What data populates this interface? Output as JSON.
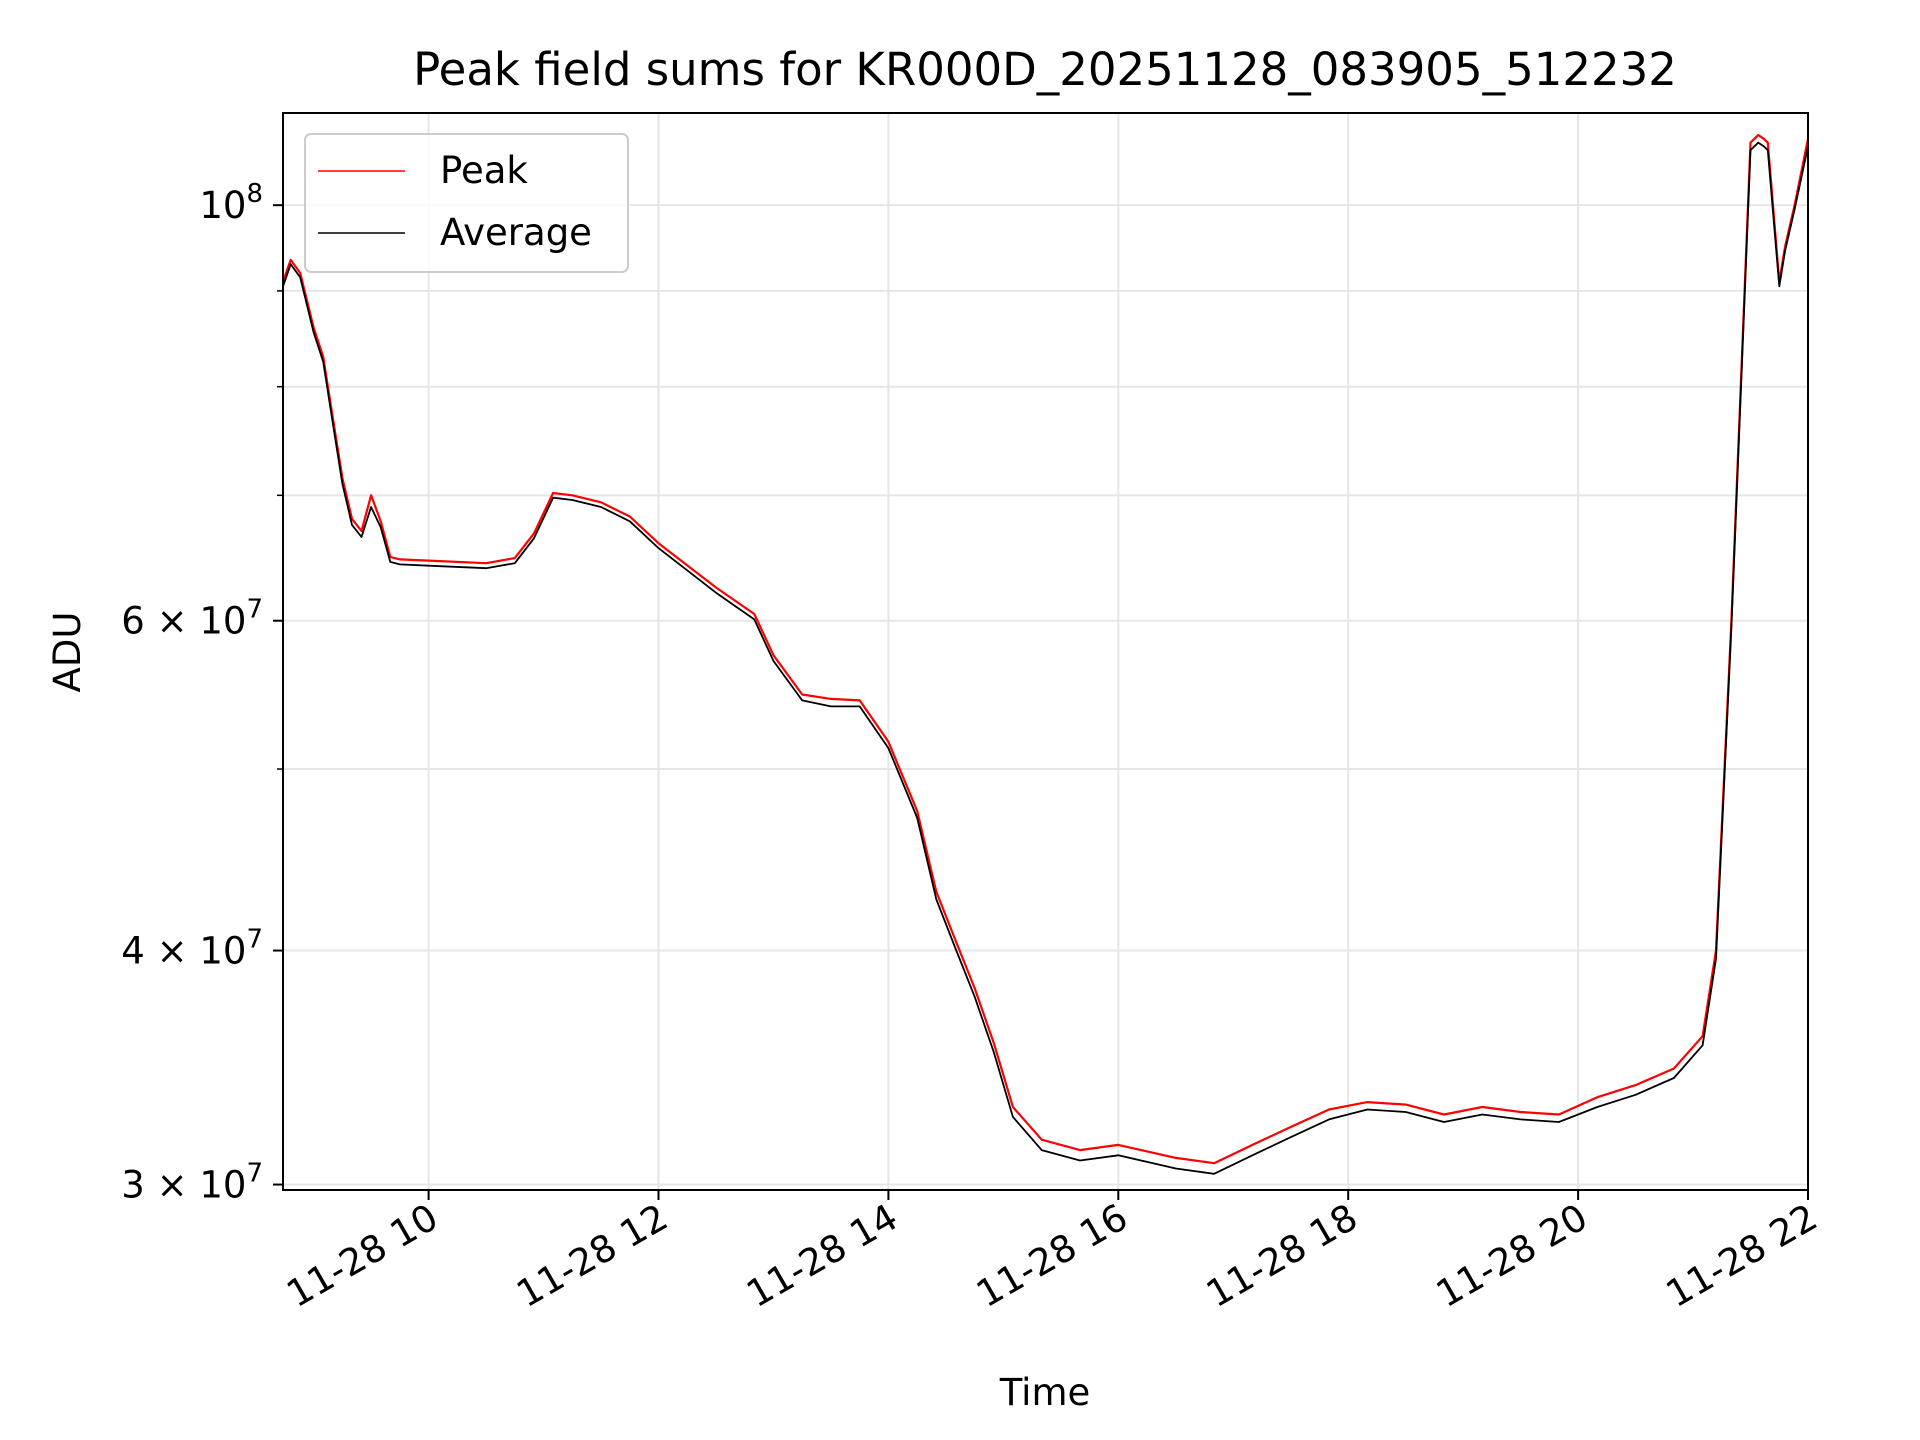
{
  "chart_data": {
    "type": "line",
    "title": "Peak field sums for KR000D_20251128_083905_512232",
    "xlabel": "Time",
    "ylabel": "ADU",
    "yscale": "log",
    "xlim": [
      "2025-11-28 08:44",
      "2025-11-28 22:00"
    ],
    "ylim": [
      29800000,
      112000000
    ],
    "grid": true,
    "legend_position": "upper-left",
    "x_ticks": [
      "2025-11-28 10:00",
      "2025-11-28 12:00",
      "2025-11-28 14:00",
      "2025-11-28 16:00",
      "2025-11-28 18:00",
      "2025-11-28 20:00",
      "2025-11-28 22:00"
    ],
    "x_tick_labels": [
      "11-28 10",
      "11-28 12",
      "11-28 14",
      "11-28 16",
      "11-28 18",
      "11-28 20",
      "11-28 22"
    ],
    "y_major_ticks": [
      {
        "value": 30000000,
        "mantissa": "3",
        "exponent": "7"
      },
      {
        "value": 40000000,
        "mantissa": "4",
        "exponent": "7"
      },
      {
        "value": 60000000,
        "mantissa": "6",
        "exponent": "7"
      },
      {
        "value": 100000000,
        "mantissa": "",
        "exponent": "8"
      }
    ],
    "y_minor_ticks": [
      50000000,
      70000000,
      80000000,
      90000000
    ],
    "colors": {
      "Peak": "#ff0000",
      "Average": "#000000"
    },
    "series": [
      {
        "name": "Peak",
        "x": [
          "2025-11-28 08:44",
          "2025-11-28 08:48",
          "2025-11-28 08:53",
          "2025-11-28 09:00",
          "2025-11-28 09:05",
          "2025-11-28 09:10",
          "2025-11-28 09:15",
          "2025-11-28 09:20",
          "2025-11-28 09:25",
          "2025-11-28 09:30",
          "2025-11-28 09:35",
          "2025-11-28 09:40",
          "2025-11-28 09:45",
          "2025-11-28 10:00",
          "2025-11-28 10:30",
          "2025-11-28 10:45",
          "2025-11-28 10:55",
          "2025-11-28 11:05",
          "2025-11-28 11:15",
          "2025-11-28 11:30",
          "2025-11-28 11:45",
          "2025-11-28 12:00",
          "2025-11-28 12:30",
          "2025-11-28 12:50",
          "2025-11-28 13:00",
          "2025-11-28 13:15",
          "2025-11-28 13:30",
          "2025-11-28 13:45",
          "2025-11-28 14:00",
          "2025-11-28 14:15",
          "2025-11-28 14:25",
          "2025-11-28 14:35",
          "2025-11-28 14:45",
          "2025-11-28 14:55",
          "2025-11-28 15:05",
          "2025-11-28 15:20",
          "2025-11-28 15:40",
          "2025-11-28 16:00",
          "2025-11-28 16:30",
          "2025-11-28 16:50",
          "2025-11-28 17:10",
          "2025-11-28 17:30",
          "2025-11-28 17:50",
          "2025-11-28 18:10",
          "2025-11-28 18:30",
          "2025-11-28 18:50",
          "2025-11-28 19:10",
          "2025-11-28 19:30",
          "2025-11-28 19:50",
          "2025-11-28 20:10",
          "2025-11-28 20:30",
          "2025-11-28 20:50",
          "2025-11-28 21:05",
          "2025-11-28 21:12",
          "2025-11-28 21:20",
          "2025-11-28 21:30",
          "2025-11-28 21:34",
          "2025-11-28 21:37",
          "2025-11-28 21:39",
          "2025-11-28 21:45",
          "2025-11-28 21:48",
          "2025-11-28 21:53",
          "2025-11-28 22:00"
        ],
        "values": [
          91000000,
          93500000,
          92000000,
          86000000,
          83000000,
          77000000,
          71500000,
          68000000,
          67000000,
          70000000,
          67800000,
          64900000,
          64700000,
          64600000,
          64400000,
          64800000,
          66800000,
          70200000,
          70000000,
          69400000,
          68200000,
          66000000,
          62500000,
          60500000,
          57500000,
          54800000,
          54500000,
          54400000,
          51700000,
          47500000,
          43000000,
          40500000,
          38200000,
          35700000,
          33000000,
          31700000,
          31300000,
          31500000,
          31000000,
          30800000,
          31500000,
          32200000,
          32900000,
          33200000,
          33100000,
          32700000,
          33000000,
          32800000,
          32700000,
          33400000,
          33900000,
          34600000,
          36000000,
          40000000,
          60000000,
          108000000,
          109000000,
          108500000,
          108000000,
          91000000,
          95000000,
          100000000,
          108500000
        ]
      },
      {
        "name": "Average",
        "x": [
          "2025-11-28 08:44",
          "2025-11-28 08:48",
          "2025-11-28 08:53",
          "2025-11-28 09:00",
          "2025-11-28 09:05",
          "2025-11-28 09:10",
          "2025-11-28 09:15",
          "2025-11-28 09:20",
          "2025-11-28 09:25",
          "2025-11-28 09:30",
          "2025-11-28 09:35",
          "2025-11-28 09:40",
          "2025-11-28 09:45",
          "2025-11-28 10:00",
          "2025-11-28 10:30",
          "2025-11-28 10:45",
          "2025-11-28 10:55",
          "2025-11-28 11:05",
          "2025-11-28 11:15",
          "2025-11-28 11:30",
          "2025-11-28 11:45",
          "2025-11-28 12:00",
          "2025-11-28 12:30",
          "2025-11-28 12:50",
          "2025-11-28 13:00",
          "2025-11-28 13:15",
          "2025-11-28 13:30",
          "2025-11-28 13:45",
          "2025-11-28 14:00",
          "2025-11-28 14:15",
          "2025-11-28 14:25",
          "2025-11-28 14:35",
          "2025-11-28 14:45",
          "2025-11-28 14:55",
          "2025-11-28 15:05",
          "2025-11-28 15:20",
          "2025-11-28 15:40",
          "2025-11-28 16:00",
          "2025-11-28 16:30",
          "2025-11-28 16:50",
          "2025-11-28 17:10",
          "2025-11-28 17:30",
          "2025-11-28 17:50",
          "2025-11-28 18:10",
          "2025-11-28 18:30",
          "2025-11-28 18:50",
          "2025-11-28 19:10",
          "2025-11-28 19:30",
          "2025-11-28 19:50",
          "2025-11-28 20:10",
          "2025-11-28 20:30",
          "2025-11-28 20:50",
          "2025-11-28 21:05",
          "2025-11-28 21:12",
          "2025-11-28 21:20",
          "2025-11-28 21:30",
          "2025-11-28 21:34",
          "2025-11-28 21:37",
          "2025-11-28 21:39",
          "2025-11-28 21:45",
          "2025-11-28 21:48",
          "2025-11-28 21:53",
          "2025-11-28 22:00"
        ],
        "values": [
          90500000,
          93000000,
          91500000,
          85500000,
          82500000,
          76500000,
          71000000,
          67500000,
          66500000,
          69000000,
          67300000,
          64500000,
          64300000,
          64200000,
          64000000,
          64400000,
          66400000,
          69800000,
          69600000,
          69000000,
          67800000,
          65600000,
          62100000,
          60100000,
          57100000,
          54400000,
          54000000,
          54000000,
          51300000,
          47100000,
          42600000,
          40100000,
          37800000,
          35300000,
          32600000,
          31300000,
          30900000,
          31100000,
          30600000,
          30400000,
          31100000,
          31800000,
          32500000,
          32900000,
          32800000,
          32400000,
          32700000,
          32500000,
          32400000,
          33000000,
          33500000,
          34200000,
          35600000,
          39600000,
          59500000,
          107000000,
          108000000,
          107500000,
          107000000,
          90500000,
          94500000,
          99500000,
          107500000
        ]
      }
    ]
  }
}
